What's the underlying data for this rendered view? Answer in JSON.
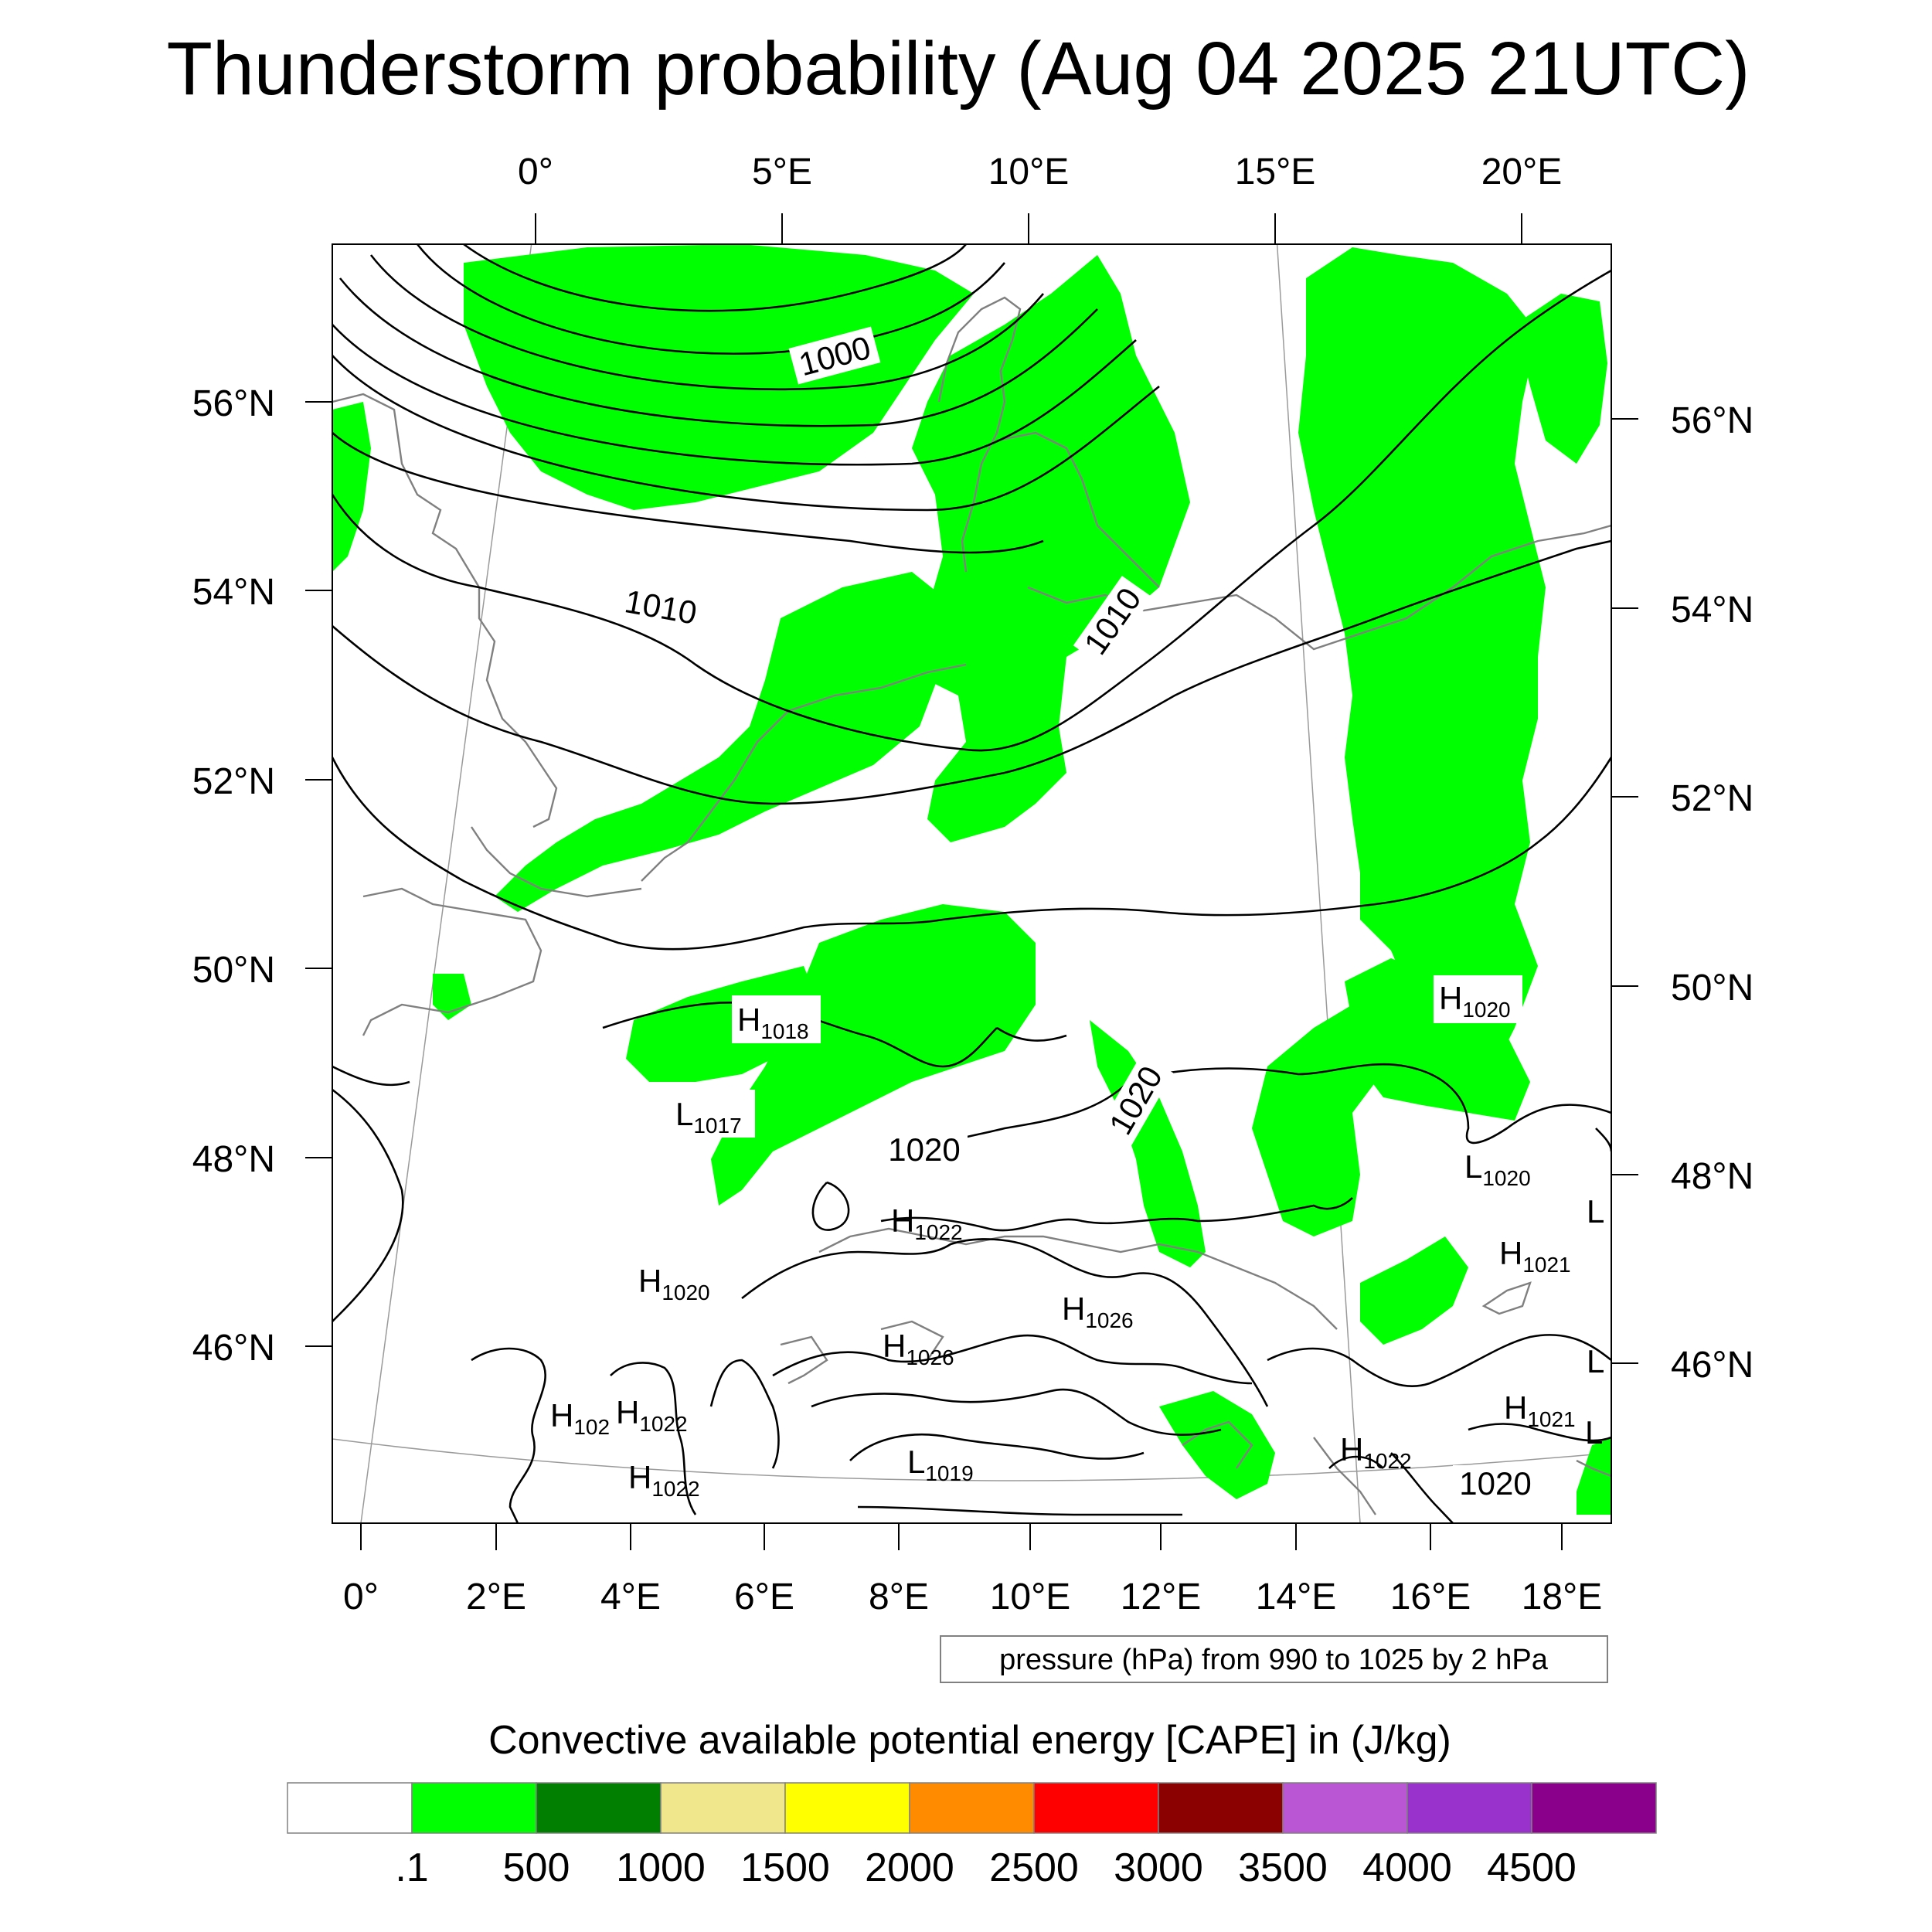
{
  "title": "Thunderstorm probability (Aug 04 2025 21UTC)",
  "top_axis_labels": [
    "0°",
    "5°E",
    "10°E",
    "15°E",
    "20°E"
  ],
  "bottom_axis_labels": [
    "0°",
    "2°E",
    "4°E",
    "6°E",
    "8°E",
    "10°E",
    "12°E",
    "14°E",
    "16°E",
    "18°E"
  ],
  "left_axis_labels": [
    "56°N",
    "54°N",
    "52°N",
    "50°N",
    "48°N",
    "46°N"
  ],
  "right_axis_labels": [
    "56°N",
    "54°N",
    "52°N",
    "50°N",
    "48°N",
    "46°N"
  ],
  "contour_labels": [
    "1000",
    "1010",
    "1010",
    "1020",
    "1020",
    "1020"
  ],
  "pressure_centers": [
    {
      "letter": "H",
      "value": "1018"
    },
    {
      "letter": "L",
      "value": "1017"
    },
    {
      "letter": "H",
      "value": "1020"
    },
    {
      "letter": "H",
      "value": "1022"
    },
    {
      "letter": "H",
      "value": "1020"
    },
    {
      "letter": "H",
      "value": "1026"
    },
    {
      "letter": "H",
      "value": "1026"
    },
    {
      "letter": "H",
      "value": "102"
    },
    {
      "letter": "H",
      "value": "1022"
    },
    {
      "letter": "H",
      "value": "1022"
    },
    {
      "letter": "L",
      "value": "1019"
    },
    {
      "letter": "H",
      "value": "1022"
    },
    {
      "letter": "L",
      "value": "1020"
    },
    {
      "letter": "H",
      "value": "1021"
    },
    {
      "letter": "H",
      "value": "1021"
    },
    {
      "letter": "L",
      "value": ""
    },
    {
      "letter": "L",
      "value": ""
    },
    {
      "letter": "L",
      "value": ""
    }
  ],
  "info_box": "pressure (hPa) from 990 to 1025 by 2 hPa",
  "colorbar": {
    "title": "Convective available potential energy [CAPE] in (J/kg)",
    "colors": [
      "#ffffff",
      "#00ff00",
      "#007f00",
      "#f0e68c",
      "#ffff00",
      "#ff8c00",
      "#ff0000",
      "#8b0000",
      "#ba55d3",
      "#9932cc",
      "#8b008b"
    ],
    "labels": [
      ".1",
      "500",
      "1000",
      "1500",
      "2000",
      "2500",
      "3000",
      "3500",
      "4000",
      "4500"
    ]
  }
}
